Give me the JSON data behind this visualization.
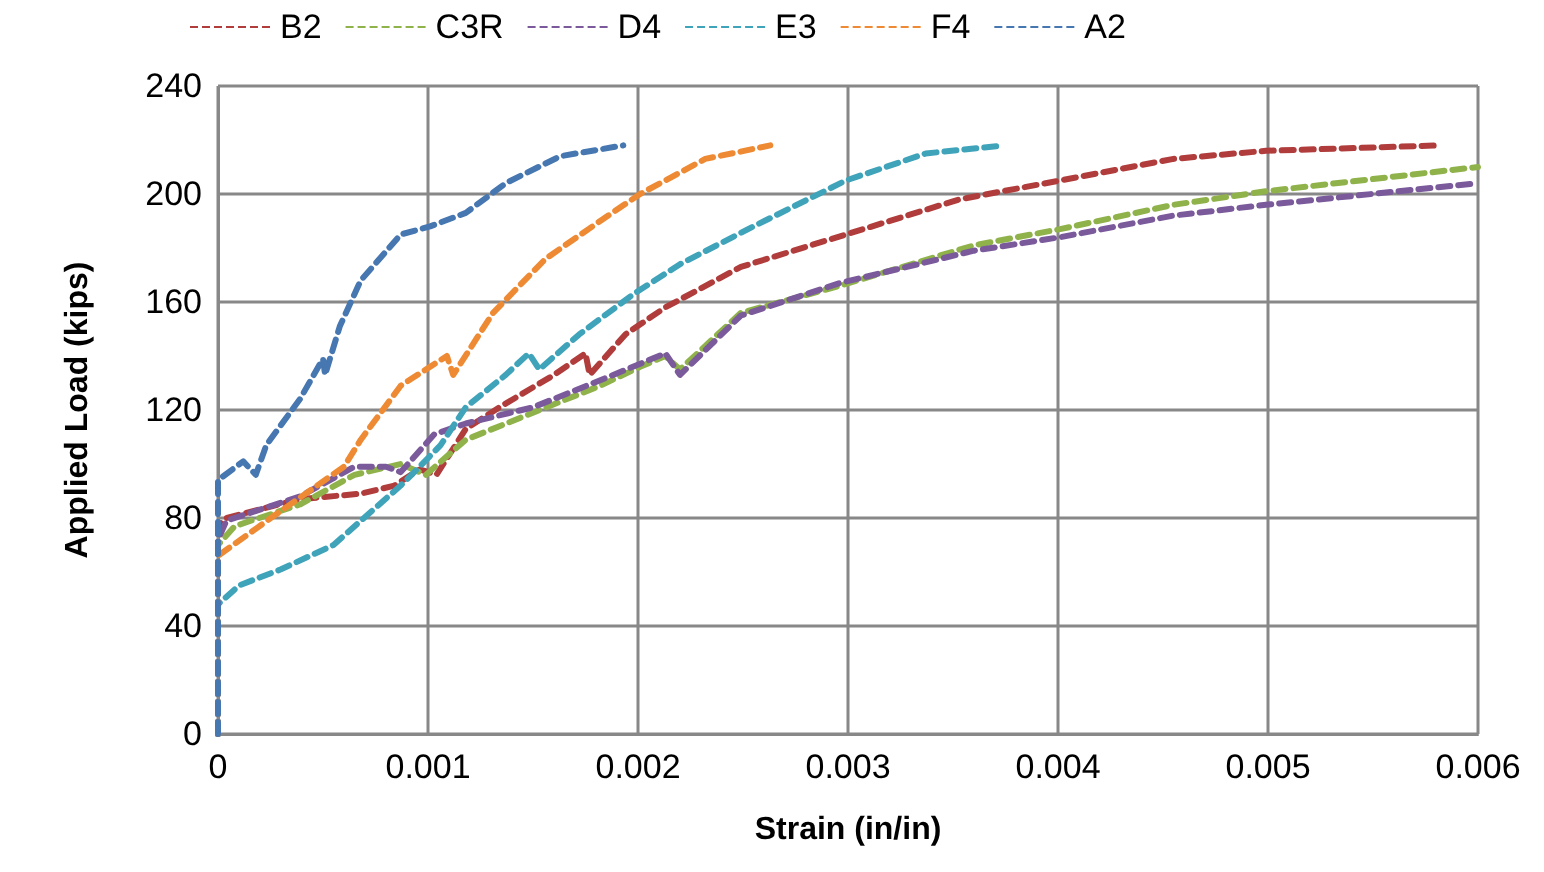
{
  "chart_data": {
    "type": "line",
    "xlabel": "Strain (in/in)",
    "ylabel": "Applied Load (kips)",
    "xlim": [
      0,
      0.006
    ],
    "xticks": [
      0,
      0.001,
      0.002,
      0.003,
      0.004,
      0.005,
      0.006
    ],
    "ylim": [
      0,
      240
    ],
    "yticks": [
      0,
      40,
      80,
      120,
      160,
      200,
      240
    ],
    "grid": true,
    "legend": "top",
    "marker": "none",
    "line_style": "dashed",
    "series": [
      {
        "name": "B2",
        "color": "#b03c3c",
        "x": [
          0,
          0,
          4e-05,
          0.00039,
          0.00068,
          0.00084,
          0.00096,
          0.00104,
          0.00118,
          0.00134,
          0.0016,
          0.00175,
          0.00177,
          0.00194,
          0.00213,
          0.00249,
          0.00299,
          0.00353,
          0.00401,
          0.00455,
          0.00499,
          0.00582
        ],
        "values": [
          0,
          77,
          80,
          87,
          89,
          92,
          98,
          96,
          113,
          121,
          133,
          141,
          133,
          148,
          158,
          173,
          185,
          198,
          205,
          213,
          216,
          218
        ]
      },
      {
        "name": "C3R",
        "color": "#8fb34a",
        "x": [
          0,
          0,
          8e-05,
          0.00039,
          0.00065,
          0.00087,
          0.00099,
          0.00118,
          0.0015,
          0.00182,
          0.00201,
          0.00213,
          0.0022,
          0.00249,
          0.00296,
          0.0036,
          0.00401,
          0.00455,
          0.00499,
          0.006
        ],
        "values": [
          0,
          70,
          77,
          85,
          96,
          100,
          96,
          109,
          119,
          129,
          136,
          140,
          135,
          156,
          166,
          181,
          187,
          196,
          201,
          210
        ]
      },
      {
        "name": "D4",
        "color": "#7a5a9b",
        "x": [
          0,
          0,
          4e-05,
          0.00039,
          0.00065,
          0.0008,
          0.00087,
          0.00103,
          0.00118,
          0.0015,
          0.00182,
          0.00213,
          0.0022,
          0.00249,
          0.00296,
          0.0036,
          0.00401,
          0.00455,
          0.00499,
          0.006
        ],
        "values": [
          0,
          72,
          79,
          88,
          99,
          99,
          97,
          111,
          115,
          121,
          131,
          141,
          133,
          155,
          167,
          179,
          184,
          192,
          196,
          204
        ]
      },
      {
        "name": "E3",
        "color": "#3fa3ba",
        "x": [
          0,
          0,
          0.0001,
          0.0003,
          0.00055,
          0.00068,
          0.00087,
          0.00096,
          0.00106,
          0.00118,
          0.00137,
          0.00148,
          0.00153,
          0.00172,
          0.00198,
          0.0022,
          0.00255,
          0.00299,
          0.00337,
          0.00374
        ],
        "values": [
          0,
          48,
          55,
          61,
          70,
          79,
          92,
          99,
          107,
          121,
          133,
          141,
          135,
          148,
          163,
          174,
          188,
          205,
          215,
          218
        ]
      },
      {
        "name": "F4",
        "color": "#ee8a33",
        "x": [
          0,
          0,
          0.00027,
          0.0006,
          0.00068,
          0.00087,
          0.00109,
          0.00112,
          0.00131,
          0.00156,
          0.00182,
          0.00201,
          0.00232,
          0.00263
        ],
        "values": [
          0,
          66,
          81,
          99,
          109,
          129,
          140,
          133,
          156,
          176,
          190,
          200,
          213,
          218
        ]
      },
      {
        "name": "A2",
        "color": "#4677b0",
        "x": [
          0,
          0,
          0.00012,
          0.00018,
          0.00023,
          0.00039,
          0.0005,
          0.00051,
          0.00058,
          0.00068,
          0.00087,
          0.00101,
          0.00118,
          0.00137,
          0.00163,
          0.00193
        ],
        "values": [
          0,
          94,
          101,
          96,
          107,
          124,
          139,
          133,
          151,
          168,
          185,
          188,
          193,
          204,
          214,
          218
        ]
      }
    ]
  }
}
